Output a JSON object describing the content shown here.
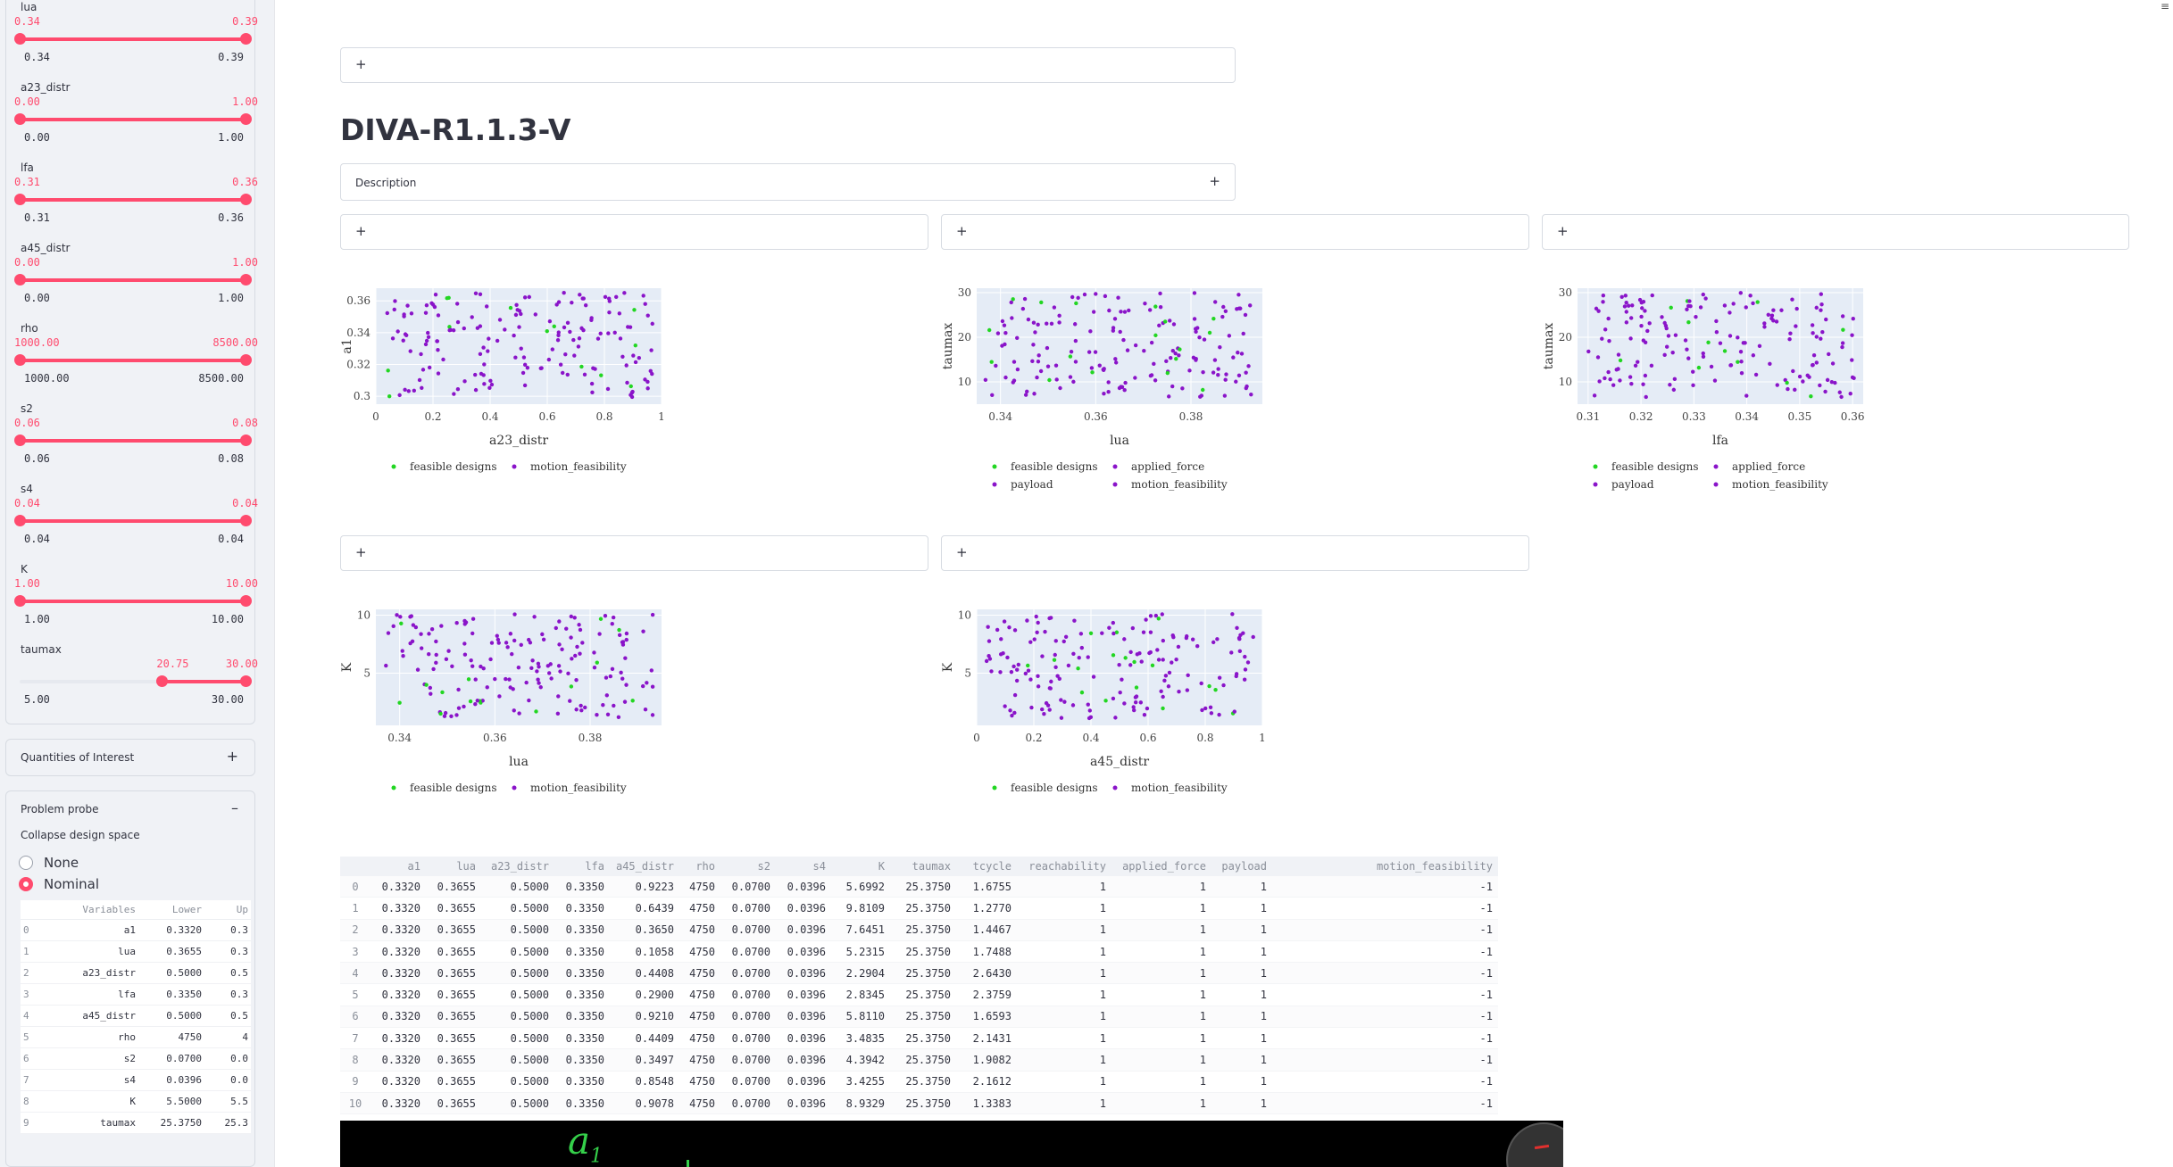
{
  "sidebar": {
    "sliders": [
      {
        "label": "lua",
        "low": "0.34",
        "high": "0.39",
        "min": "0.34",
        "max": "0.39",
        "sel_low": 0.0,
        "sel_high": 1.0
      },
      {
        "label": "a23_distr",
        "low": "0.00",
        "high": "1.00",
        "min": "0.00",
        "max": "1.00",
        "sel_low": 0.0,
        "sel_high": 1.0
      },
      {
        "label": "lfa",
        "low": "0.31",
        "high": "0.36",
        "min": "0.31",
        "max": "0.36",
        "sel_low": 0.0,
        "sel_high": 1.0
      },
      {
        "label": "a45_distr",
        "low": "0.00",
        "high": "1.00",
        "min": "0.00",
        "max": "1.00",
        "sel_low": 0.0,
        "sel_high": 1.0
      },
      {
        "label": "rho",
        "low": "1000.00",
        "high": "8500.00",
        "min": "1000.00",
        "max": "8500.00",
        "sel_low": 0.0,
        "sel_high": 1.0
      },
      {
        "label": "s2",
        "low": "0.06",
        "high": "0.08",
        "min": "0.06",
        "max": "0.08",
        "sel_low": 0.0,
        "sel_high": 1.0
      },
      {
        "label": "s4",
        "low": "0.04",
        "high": "0.04",
        "min": "0.04",
        "max": "0.04",
        "sel_low": 0.0,
        "sel_high": 1.0
      },
      {
        "label": "K",
        "low": "1.00",
        "high": "10.00",
        "min": "1.00",
        "max": "10.00",
        "sel_low": 0.0,
        "sel_high": 1.0
      },
      {
        "label": "taumax",
        "low": "20.75",
        "high": "30.00",
        "min": "5.00",
        "max": "30.00",
        "sel_low": 0.63,
        "sel_high": 1.0
      }
    ],
    "quantities_label": "Quantities of Interest",
    "probe_label": "Problem probe",
    "collapse_label": "Collapse design space",
    "radio_options": [
      "None",
      "Nominal"
    ],
    "radio_selected": 1,
    "var_table": {
      "headers": [
        "",
        "Variables",
        "Lower",
        "Up"
      ],
      "rows": [
        [
          "0",
          "a1",
          "0.3320",
          "0.3"
        ],
        [
          "1",
          "lua",
          "0.3655",
          "0.3"
        ],
        [
          "2",
          "a23_distr",
          "0.5000",
          "0.5"
        ],
        [
          "3",
          "lfa",
          "0.3350",
          "0.3"
        ],
        [
          "4",
          "a45_distr",
          "0.5000",
          "0.5"
        ],
        [
          "5",
          "rho",
          "4750",
          "4"
        ],
        [
          "6",
          "s2",
          "0.0700",
          "0.0"
        ],
        [
          "7",
          "s4",
          "0.0396",
          "0.0"
        ],
        [
          "8",
          "K",
          "5.5000",
          "5.5"
        ],
        [
          "9",
          "taumax",
          "25.3750",
          "25.3"
        ]
      ]
    }
  },
  "main": {
    "expander_sign": "+",
    "title": "DIVA-R1.1.3-V",
    "description_label": "Description",
    "colors": {
      "feasible": "#22d622",
      "infeasible": "#8a14c9",
      "accent": "#ff4b6e"
    }
  },
  "chart_data": [
    {
      "type": "scatter",
      "xlabel": "a23_distr",
      "ylabel": "a1",
      "xlim": [
        0,
        1
      ],
      "ylim": [
        0.295,
        0.368
      ],
      "xticks": [
        "0",
        "0.2",
        "0.4",
        "0.6",
        "0.8",
        "1"
      ],
      "yticks": [
        "0.3",
        "0.32",
        "0.34",
        "0.36"
      ],
      "legend": [
        "feasible designs",
        "motion_feasibility"
      ]
    },
    {
      "type": "scatter",
      "xlabel": "lua",
      "ylabel": "taumax",
      "xlim": [
        0.335,
        0.395
      ],
      "ylim": [
        5,
        31
      ],
      "xticks": [
        "0.34",
        "0.36",
        "0.38"
      ],
      "yticks": [
        "10",
        "20",
        "30"
      ],
      "legend": [
        "feasible designs",
        "applied_force",
        "payload",
        "motion_feasibility"
      ]
    },
    {
      "type": "scatter",
      "xlabel": "lfa",
      "ylabel": "taumax",
      "xlim": [
        0.308,
        0.362
      ],
      "ylim": [
        5,
        31
      ],
      "xticks": [
        "0.31",
        "0.32",
        "0.33",
        "0.34",
        "0.35",
        "0.36"
      ],
      "yticks": [
        "10",
        "20",
        "30"
      ],
      "legend": [
        "feasible designs",
        "applied_force",
        "payload",
        "motion_feasibility"
      ]
    },
    {
      "type": "scatter",
      "xlabel": "lua",
      "ylabel": "K",
      "xlim": [
        0.335,
        0.395
      ],
      "ylim": [
        0.5,
        10.5
      ],
      "xticks": [
        "0.34",
        "0.36",
        "0.38"
      ],
      "yticks": [
        "5",
        "10"
      ],
      "legend": [
        "feasible designs",
        "motion_feasibility"
      ]
    },
    {
      "type": "scatter",
      "xlabel": "a45_distr",
      "ylabel": "K",
      "xlim": [
        0,
        1
      ],
      "ylim": [
        0.5,
        10.5
      ],
      "xticks": [
        "0",
        "0.2",
        "0.4",
        "0.6",
        "0.8",
        "1"
      ],
      "yticks": [
        "5",
        "10"
      ],
      "legend": [
        "feasible designs",
        "motion_feasibility"
      ]
    }
  ],
  "data_table": {
    "headers": [
      "",
      "a1",
      "lua",
      "a23_distr",
      "lfa",
      "a45_distr",
      "rho",
      "s2",
      "s4",
      "K",
      "taumax",
      "tcycle",
      "reachability",
      "applied_force",
      "payload",
      "motion_feasibility"
    ],
    "rows": [
      [
        "0",
        "0.3320",
        "0.3655",
        "0.5000",
        "0.3350",
        "0.9223",
        "4750",
        "0.0700",
        "0.0396",
        "5.6992",
        "25.3750",
        "1.6755",
        "1",
        "1",
        "1",
        "-1"
      ],
      [
        "1",
        "0.3320",
        "0.3655",
        "0.5000",
        "0.3350",
        "0.6439",
        "4750",
        "0.0700",
        "0.0396",
        "9.8109",
        "25.3750",
        "1.2770",
        "1",
        "1",
        "1",
        "-1"
      ],
      [
        "2",
        "0.3320",
        "0.3655",
        "0.5000",
        "0.3350",
        "0.3650",
        "4750",
        "0.0700",
        "0.0396",
        "7.6451",
        "25.3750",
        "1.4467",
        "1",
        "1",
        "1",
        "-1"
      ],
      [
        "3",
        "0.3320",
        "0.3655",
        "0.5000",
        "0.3350",
        "0.1058",
        "4750",
        "0.0700",
        "0.0396",
        "5.2315",
        "25.3750",
        "1.7488",
        "1",
        "1",
        "1",
        "-1"
      ],
      [
        "4",
        "0.3320",
        "0.3655",
        "0.5000",
        "0.3350",
        "0.4408",
        "4750",
        "0.0700",
        "0.0396",
        "2.2904",
        "25.3750",
        "2.6430",
        "1",
        "1",
        "1",
        "-1"
      ],
      [
        "5",
        "0.3320",
        "0.3655",
        "0.5000",
        "0.3350",
        "0.2900",
        "4750",
        "0.0700",
        "0.0396",
        "2.8345",
        "25.3750",
        "2.3759",
        "1",
        "1",
        "1",
        "-1"
      ],
      [
        "6",
        "0.3320",
        "0.3655",
        "0.5000",
        "0.3350",
        "0.9210",
        "4750",
        "0.0700",
        "0.0396",
        "5.8110",
        "25.3750",
        "1.6593",
        "1",
        "1",
        "1",
        "-1"
      ],
      [
        "7",
        "0.3320",
        "0.3655",
        "0.5000",
        "0.3350",
        "0.4409",
        "4750",
        "0.0700",
        "0.0396",
        "3.4835",
        "25.3750",
        "2.1431",
        "1",
        "1",
        "1",
        "-1"
      ],
      [
        "8",
        "0.3320",
        "0.3655",
        "0.5000",
        "0.3350",
        "0.3497",
        "4750",
        "0.0700",
        "0.0396",
        "4.3942",
        "25.3750",
        "1.9082",
        "1",
        "1",
        "1",
        "-1"
      ],
      [
        "9",
        "0.3320",
        "0.3655",
        "0.5000",
        "0.3350",
        "0.8548",
        "4750",
        "0.0700",
        "0.0396",
        "3.4255",
        "25.3750",
        "2.1612",
        "1",
        "1",
        "1",
        "-1"
      ],
      [
        "10",
        "0.3320",
        "0.3655",
        "0.5000",
        "0.3350",
        "0.9078",
        "4750",
        "0.0700",
        "0.0396",
        "8.9329",
        "25.3750",
        "1.3383",
        "1",
        "1",
        "1",
        "-1"
      ]
    ]
  },
  "video": {
    "glyph": "a",
    "subscript": "1"
  }
}
